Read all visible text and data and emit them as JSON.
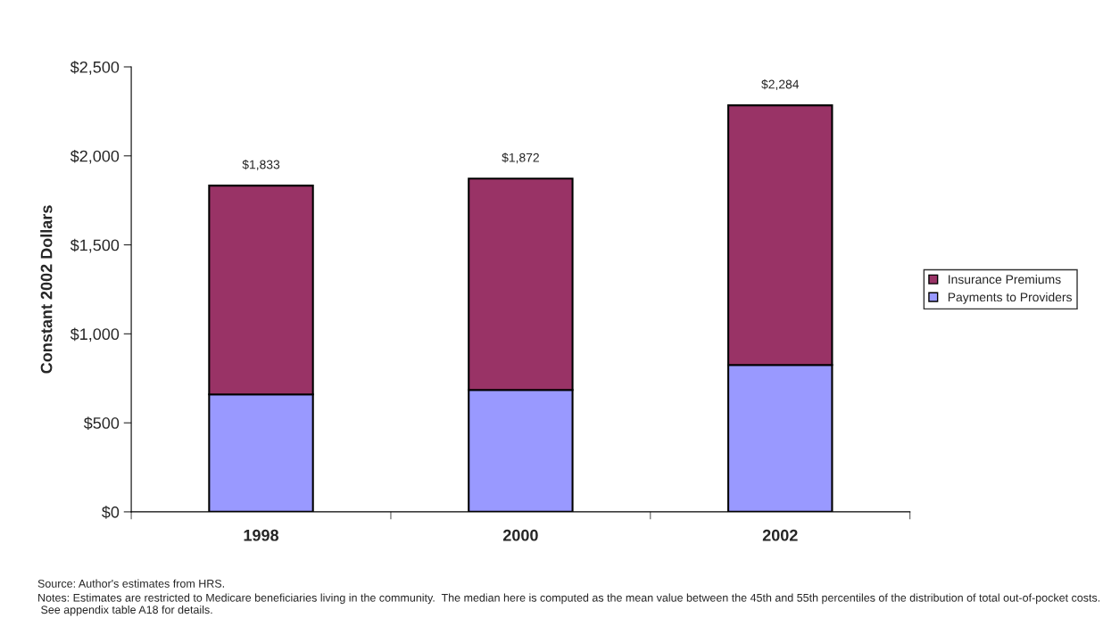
{
  "chart_data": {
    "type": "bar",
    "stacked": true,
    "ylabel": "Constant 2002 Dollars",
    "categories": [
      "1998",
      "2000",
      "2002"
    ],
    "series": [
      {
        "name": "Payments to Providers",
        "color": "#9999ff",
        "values": [
          660,
          685,
          825
        ]
      },
      {
        "name": "Insurance Premiums",
        "color": "#993366",
        "values": [
          1173,
          1187,
          1459
        ]
      }
    ],
    "totals": [
      "$1,833",
      "$1,872",
      "$2,284"
    ],
    "ylim": [
      0,
      2500
    ],
    "yticks": [
      {
        "value": 0,
        "label": "$0"
      },
      {
        "value": 500,
        "label": "$500"
      },
      {
        "value": 1000,
        "label": "$1,000"
      },
      {
        "value": 1500,
        "label": "$1,500"
      },
      {
        "value": 2000,
        "label": "$2,000"
      },
      {
        "value": 2500,
        "label": "$2,500"
      }
    ],
    "grid": false,
    "legend": "right",
    "annotations": [
      "Source: Author's estimates from HRS.",
      "Notes: Estimates are restricted to Medicare beneficiaries living in the community.  The median here is computed as the mean value between the 45th and 55th percentiles of the distribution of total out-of-pocket costs.  See appendix table A18 for details."
    ]
  }
}
